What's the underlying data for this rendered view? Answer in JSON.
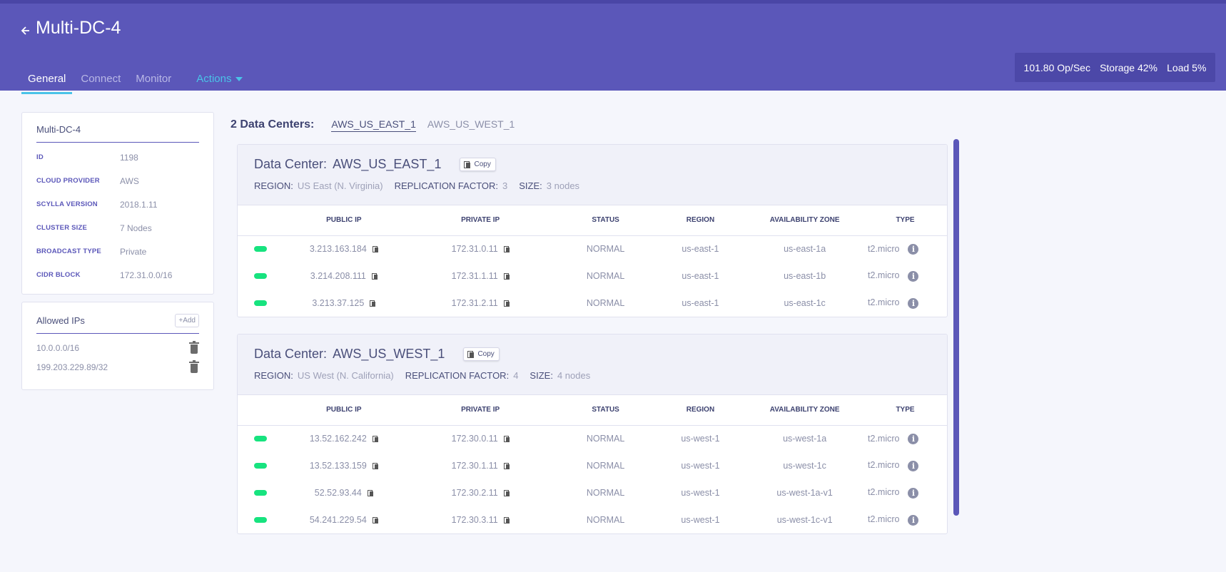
{
  "header": {
    "title": "Multi-DC-4",
    "tabs": [
      {
        "label": "General"
      },
      {
        "label": "Connect"
      },
      {
        "label": "Monitor"
      },
      {
        "label": "Actions"
      }
    ],
    "metrics": {
      "ops": "101.80 Op/Sec",
      "storage": "Storage 42%",
      "load": "Load 5%"
    }
  },
  "cluster_info": {
    "title": "Multi-DC-4",
    "rows": [
      {
        "key": "ID",
        "value": "1198"
      },
      {
        "key": "CLOUD PROVIDER",
        "value": "AWS"
      },
      {
        "key": "SCYLLA VERSION",
        "value": "2018.1.11"
      },
      {
        "key": "CLUSTER SIZE",
        "value": "7 Nodes"
      },
      {
        "key": "BROADCAST TYPE",
        "value": "Private"
      },
      {
        "key": "CIDR BLOCK",
        "value": "172.31.0.0/16"
      }
    ]
  },
  "allowed_ips": {
    "title": "Allowed IPs",
    "add_label": "+Add",
    "items": [
      "10.0.0.0/16",
      "199.203.229.89/32"
    ]
  },
  "data_centers_header": {
    "count_label": "2 Data Centers:",
    "tabs": [
      "AWS_US_EAST_1",
      "AWS_US_WEST_1"
    ]
  },
  "table_headers": [
    "",
    "PUBLIC IP",
    "PRIVATE IP",
    "STATUS",
    "REGION",
    "AVAILABILITY ZONE",
    "TYPE"
  ],
  "labels": {
    "data_center": "Data Center:",
    "copy": "Copy",
    "region": "REGION:",
    "replication_factor": "REPLICATION FACTOR:",
    "size": "SIZE:"
  },
  "data_centers": [
    {
      "name": "AWS_US_EAST_1",
      "region": "US East (N. Virginia)",
      "replication_factor": "3",
      "size": "3 nodes",
      "nodes": [
        {
          "public_ip": "3.213.163.184",
          "private_ip": "172.31.0.11",
          "status": "NORMAL",
          "region": "us-east-1",
          "zone": "us-east-1a",
          "type": "t2.micro"
        },
        {
          "public_ip": "3.214.208.111",
          "private_ip": "172.31.1.11",
          "status": "NORMAL",
          "region": "us-east-1",
          "zone": "us-east-1b",
          "type": "t2.micro"
        },
        {
          "public_ip": "3.213.37.125",
          "private_ip": "172.31.2.11",
          "status": "NORMAL",
          "region": "us-east-1",
          "zone": "us-east-1c",
          "type": "t2.micro"
        }
      ]
    },
    {
      "name": "AWS_US_WEST_1",
      "region": "US West (N. California)",
      "replication_factor": "4",
      "size": "4 nodes",
      "nodes": [
        {
          "public_ip": "13.52.162.242",
          "private_ip": "172.30.0.11",
          "status": "NORMAL",
          "region": "us-west-1",
          "zone": "us-west-1a",
          "type": "t2.micro"
        },
        {
          "public_ip": "13.52.133.159",
          "private_ip": "172.30.1.11",
          "status": "NORMAL",
          "region": "us-west-1",
          "zone": "us-west-1c",
          "type": "t2.micro"
        },
        {
          "public_ip": "52.52.93.44",
          "private_ip": "172.30.2.11",
          "status": "NORMAL",
          "region": "us-west-1",
          "zone": "us-west-1a-v1",
          "type": "t2.micro"
        },
        {
          "public_ip": "54.241.229.54",
          "private_ip": "172.30.3.11",
          "status": "NORMAL",
          "region": "us-west-1",
          "zone": "us-west-1c-v1",
          "type": "t2.micro"
        }
      ]
    }
  ],
  "colors": {
    "header_bg": "#5b57b9",
    "accent": "#4ac3e8",
    "status_ok": "#17e37f"
  }
}
